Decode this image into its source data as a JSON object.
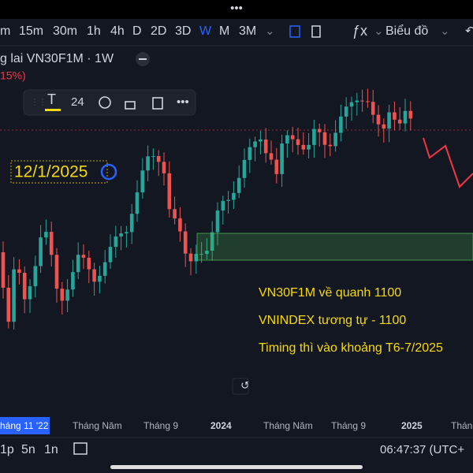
{
  "top_menu": "•••",
  "intervals": [
    "m",
    "15m",
    "30m",
    "1h",
    "4h",
    "D",
    "2D",
    "3D",
    "W",
    "M",
    "3M"
  ],
  "chart_type_label": "Biểu đồ",
  "symbol": "g lai VN30F1M · 1W",
  "change": "15%)",
  "drawing_toolbar": {
    "font_size": "24",
    "more": "•••"
  },
  "date_label": "12/1/2025",
  "annotations": [
    "VN30F1M về quanh 1100",
    "VNINDEX tương tự - 1100",
    "Timing thì vào khoảng T6-7/2025"
  ],
  "x_axis": [
    "háng 11 '22",
    "Tháng Năm",
    "Tháng 9",
    "2024",
    "Tháng Năm",
    "Tháng 9",
    "2025",
    "Tháng"
  ],
  "bottom_intervals": [
    "1p",
    "5n",
    "1n"
  ],
  "clock": "06:47:37 (UTC+"
}
